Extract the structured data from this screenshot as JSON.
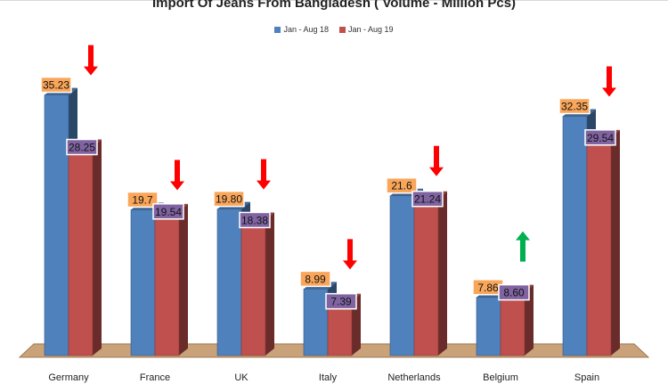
{
  "chart_data": {
    "type": "bar",
    "title": "Import Of Jeans From Bangladesh  ( Volume - Million Pcs)",
    "xlabel": "",
    "ylabel": "",
    "ylim": [
      0,
      40
    ],
    "grid": false,
    "legend_position": "top-center",
    "categories": [
      "Germany",
      "France",
      "UK",
      "Italy",
      "Netherlands",
      "Belgium",
      "Spain"
    ],
    "series": [
      {
        "name": "Jan - Aug 18",
        "color": "#4f81bd",
        "values": [
          35.23,
          19.7,
          19.8,
          8.99,
          21.6,
          7.86,
          32.35
        ],
        "labels": [
          "35.23",
          "19.7",
          "19.80",
          "8.99",
          "21.6",
          "7.86",
          "32.35"
        ]
      },
      {
        "name": "Jan - Aug 19",
        "color": "#c0504d",
        "values": [
          28.25,
          19.54,
          18.38,
          7.39,
          21.24,
          8.6,
          29.54
        ],
        "labels": [
          "28.25",
          "19.54",
          "18.38",
          "7.39",
          "21.24",
          "8.60",
          "29.54"
        ]
      }
    ],
    "trend_arrows": [
      "down",
      "down",
      "down",
      "down",
      "down",
      "up",
      "down"
    ],
    "colors": {
      "label_bg_series1": "#f9a65a",
      "label_bg_series2": "#8064a2",
      "arrow_down": "#ff0000",
      "arrow_up": "#00b050",
      "floor": "#c9a27a"
    }
  }
}
